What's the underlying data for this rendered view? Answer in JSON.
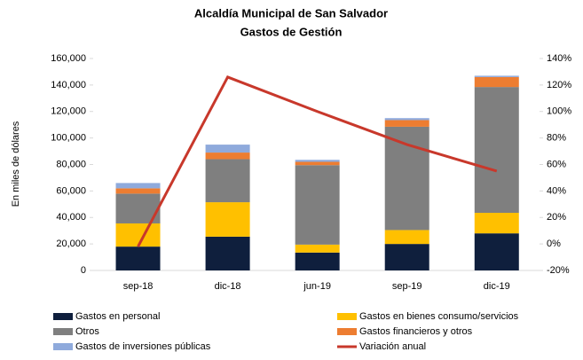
{
  "chart_data": {
    "type": "bar",
    "title": "Alcaldía Municipal de San Salvador",
    "subtitle": "Gastos de Gestión",
    "ylabel": "En miles de dólares",
    "categories": [
      "sep-18",
      "dic-18",
      "jun-19",
      "sep-19",
      "dic-19"
    ],
    "stacked": true,
    "series": [
      {
        "name": "Gastos en personal",
        "color": "#0f1f3d",
        "values": [
          18000,
          25500,
          13500,
          20000,
          28000
        ]
      },
      {
        "name": "Gastos en bienes consumo/servicios",
        "color": "#ffc000",
        "values": [
          17500,
          26000,
          6000,
          10500,
          15500
        ]
      },
      {
        "name": "Otros",
        "color": "#7f7f7f",
        "values": [
          22500,
          32500,
          60000,
          78000,
          95000
        ]
      },
      {
        "name": "Gastos financieros y otros",
        "color": "#ed7d31",
        "values": [
          4000,
          5000,
          2500,
          5000,
          7500
        ]
      },
      {
        "name": "Gastos de inversiones públicas",
        "color": "#8faadc",
        "values": [
          4000,
          6000,
          1500,
          1500,
          1000
        ]
      },
      {
        "name": "Variación anual",
        "color": "#c8382b",
        "type": "line",
        "axis": "y2",
        "values": [
          -2,
          126,
          100,
          75,
          55
        ]
      }
    ],
    "ylim": [
      0,
      160000
    ],
    "yticks": [
      0,
      {
        "value": 20000,
        "label": "20,000"
      },
      {
        "value": 40000,
        "label": "40,000"
      },
      {
        "value": 60000,
        "label": "60,000"
      },
      {
        "value": 80000,
        "label": "80,000"
      },
      {
        "value": 100000,
        "label": "100,000"
      },
      {
        "value": 120000,
        "label": "120,000"
      },
      {
        "value": 140000,
        "label": "140,000"
      },
      {
        "value": 160000,
        "label": "160,000"
      }
    ],
    "y2lim": [
      -20,
      140
    ],
    "y2ticks": [
      {
        "value": -20,
        "label": "-20%"
      },
      {
        "value": 0,
        "label": "0%"
      },
      {
        "value": 20,
        "label": "20%"
      },
      {
        "value": 40,
        "label": "40%"
      },
      {
        "value": 60,
        "label": "60%"
      },
      {
        "value": 80,
        "label": "80%"
      },
      {
        "value": 100,
        "label": "100%"
      },
      {
        "value": 120,
        "label": "120%"
      },
      {
        "value": 140,
        "label": "140%"
      }
    ],
    "legend": "bottom"
  }
}
